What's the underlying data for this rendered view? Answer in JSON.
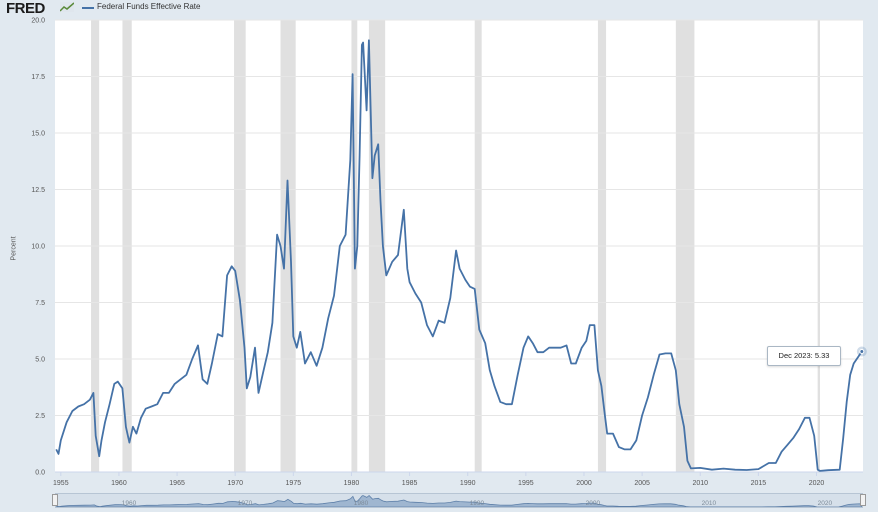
{
  "header": {
    "logo_text": "FRED",
    "series_name": "Federal Funds Effective Rate"
  },
  "colors": {
    "line": "#4572a7",
    "recession": "#e0e0e0",
    "plot_bg": "#ffffff",
    "grid": "#e6e6e6"
  },
  "tooltip": {
    "label": "Dec 2023:",
    "value": "5.33"
  },
  "chart_data": {
    "type": "line",
    "title": "",
    "xlabel": "",
    "ylabel": "Percent",
    "xlim": [
      1954.5,
      2024.0
    ],
    "ylim": [
      0,
      20
    ],
    "x_ticks": [
      "1955",
      "1960",
      "1965",
      "1970",
      "1975",
      "1980",
      "1985",
      "1990",
      "1995",
      "2000",
      "2005",
      "2010",
      "2015",
      "2020"
    ],
    "y_ticks": [
      "0.0",
      "2.5",
      "5.0",
      "7.5",
      "10.0",
      "12.5",
      "15.0",
      "17.5",
      "20.0"
    ],
    "navigator_labels": [
      "1960",
      "1970",
      "1980",
      "1990",
      "2000",
      "2010",
      "2020"
    ],
    "grid": true,
    "legend": "top-left",
    "recessions": [
      [
        1957.6,
        1958.3
      ],
      [
        1960.3,
        1961.1
      ],
      [
        1969.9,
        1970.9
      ],
      [
        1973.9,
        1975.2
      ],
      [
        1980.0,
        1980.5
      ],
      [
        1981.5,
        1982.9
      ],
      [
        1990.6,
        1991.2
      ],
      [
        2001.2,
        2001.9
      ],
      [
        2007.9,
        2009.5
      ],
      [
        2020.1,
        2020.3
      ]
    ],
    "series": [
      {
        "name": "Federal Funds Effective Rate",
        "x": [
          1954.6,
          1954.8,
          1955.0,
          1955.5,
          1956.0,
          1956.5,
          1957.0,
          1957.5,
          1957.8,
          1958.0,
          1958.3,
          1958.5,
          1958.8,
          1959.2,
          1959.6,
          1959.9,
          1960.3,
          1960.6,
          1960.9,
          1961.2,
          1961.5,
          1961.9,
          1962.3,
          1962.8,
          1963.3,
          1963.8,
          1964.3,
          1964.8,
          1965.3,
          1965.8,
          1966.3,
          1966.8,
          1967.2,
          1967.6,
          1968.0,
          1968.5,
          1968.9,
          1969.3,
          1969.7,
          1970.0,
          1970.4,
          1970.8,
          1971.0,
          1971.3,
          1971.7,
          1972.0,
          1972.4,
          1972.8,
          1973.2,
          1973.6,
          1973.9,
          1974.2,
          1974.5,
          1974.8,
          1975.0,
          1975.3,
          1975.6,
          1976.0,
          1976.5,
          1977.0,
          1977.5,
          1978.0,
          1978.5,
          1979.0,
          1979.5,
          1979.9,
          1980.1,
          1980.3,
          1980.5,
          1980.7,
          1980.9,
          1981.0,
          1981.3,
          1981.5,
          1981.8,
          1982.0,
          1982.3,
          1982.5,
          1982.7,
          1983.0,
          1983.5,
          1984.0,
          1984.5,
          1984.8,
          1985.0,
          1985.5,
          1986.0,
          1986.5,
          1987.0,
          1987.5,
          1988.0,
          1988.5,
          1989.0,
          1989.3,
          1989.8,
          1990.2,
          1990.6,
          1991.0,
          1991.5,
          1991.9,
          1992.3,
          1992.8,
          1993.3,
          1993.8,
          1994.3,
          1994.8,
          1995.2,
          1995.6,
          1996.0,
          1996.5,
          1997.0,
          1997.5,
          1998.0,
          1998.5,
          1998.9,
          1999.3,
          1999.8,
          2000.2,
          2000.5,
          2000.9,
          2001.2,
          2001.5,
          2001.8,
          2002.0,
          2002.5,
          2003.0,
          2003.5,
          2004.0,
          2004.5,
          2005.0,
          2005.5,
          2006.0,
          2006.5,
          2007.0,
          2007.5,
          2007.9,
          2008.2,
          2008.6,
          2008.9,
          2009.2,
          2010.0,
          2011.0,
          2012.0,
          2013.0,
          2014.0,
          2015.0,
          2015.9,
          2016.5,
          2017.0,
          2017.5,
          2018.0,
          2018.5,
          2019.0,
          2019.4,
          2019.8,
          2020.1,
          2020.3,
          2021.0,
          2022.0,
          2022.3,
          2022.6,
          2022.9,
          2023.2,
          2023.6,
          2023.9
        ],
        "values": [
          1.0,
          0.8,
          1.4,
          2.2,
          2.7,
          2.9,
          3.0,
          3.2,
          3.5,
          1.6,
          0.7,
          1.4,
          2.2,
          3.0,
          3.9,
          4.0,
          3.7,
          2.0,
          1.3,
          2.0,
          1.7,
          2.4,
          2.8,
          2.9,
          3.0,
          3.5,
          3.5,
          3.9,
          4.1,
          4.3,
          5.0,
          5.6,
          4.1,
          3.9,
          4.8,
          6.1,
          6.0,
          8.7,
          9.1,
          8.9,
          7.6,
          5.5,
          3.7,
          4.2,
          5.5,
          3.5,
          4.4,
          5.3,
          6.6,
          10.5,
          10.0,
          9.0,
          12.9,
          9.3,
          6.0,
          5.5,
          6.2,
          4.8,
          5.3,
          4.7,
          5.5,
          6.8,
          7.8,
          10.0,
          10.5,
          13.8,
          17.6,
          9.0,
          10.0,
          14.0,
          18.9,
          19.0,
          16.0,
          19.1,
          13.0,
          14.0,
          14.5,
          12.0,
          10.0,
          8.7,
          9.3,
          9.6,
          11.6,
          9.0,
          8.4,
          7.9,
          7.5,
          6.5,
          6.0,
          6.7,
          6.6,
          7.7,
          9.8,
          9.0,
          8.5,
          8.2,
          8.1,
          6.3,
          5.7,
          4.5,
          3.8,
          3.1,
          3.0,
          3.0,
          4.3,
          5.5,
          6.0,
          5.7,
          5.3,
          5.3,
          5.5,
          5.5,
          5.5,
          5.6,
          4.8,
          4.8,
          5.5,
          5.8,
          6.5,
          6.5,
          4.5,
          3.8,
          2.5,
          1.7,
          1.7,
          1.1,
          1.0,
          1.0,
          1.4,
          2.5,
          3.3,
          4.3,
          5.2,
          5.25,
          5.25,
          4.5,
          3.0,
          2.0,
          0.5,
          0.16,
          0.18,
          0.1,
          0.15,
          0.1,
          0.09,
          0.13,
          0.4,
          0.4,
          0.9,
          1.2,
          1.5,
          1.9,
          2.4,
          2.4,
          1.6,
          0.1,
          0.05,
          0.08,
          0.1,
          1.5,
          3.1,
          4.3,
          4.8,
          5.1,
          5.33
        ]
      }
    ]
  }
}
